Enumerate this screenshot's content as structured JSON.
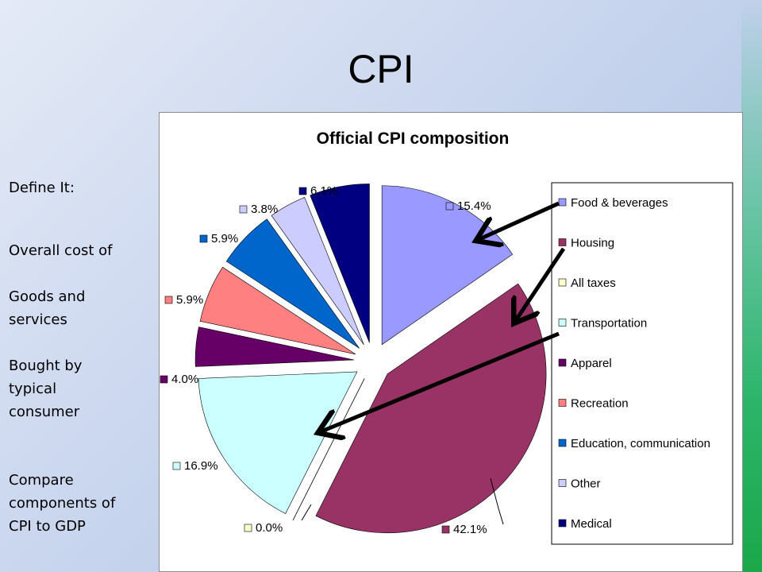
{
  "slide": {
    "title": "CPI",
    "side_text": [
      "Define It:",
      "Overall cost of",
      "Goods and services",
      "Bought by typical consumer",
      "Compare components of CPI to GDP"
    ]
  },
  "chart_data": {
    "type": "pie",
    "title": "Official CPI composition",
    "legend_position": "right",
    "exploded": true,
    "slices": [
      {
        "name": "Food & beverages",
        "value": 15.4,
        "label": "15.4%",
        "color": "#9999ff"
      },
      {
        "name": "Housing",
        "value": 42.1,
        "label": "42.1%",
        "color": "#993366"
      },
      {
        "name": "All taxes",
        "value": 0.0,
        "label": "0.0%",
        "color": "#ffffcc"
      },
      {
        "name": "Transportation",
        "value": 16.9,
        "label": "16.9%",
        "color": "#ccffff"
      },
      {
        "name": "Apparel",
        "value": 4.0,
        "label": "4.0%",
        "color": "#660066"
      },
      {
        "name": "Recreation",
        "value": 5.9,
        "label": "5.9%",
        "color": "#ff8080"
      },
      {
        "name": "Education, communication",
        "value": 5.9,
        "label": "5.9%",
        "color": "#0066cc"
      },
      {
        "name": "Other",
        "value": 3.8,
        "label": "3.8%",
        "color": "#ccccff"
      },
      {
        "name": "Medical",
        "value": 6.1,
        "label": "6.1%",
        "color": "#000080"
      }
    ]
  }
}
